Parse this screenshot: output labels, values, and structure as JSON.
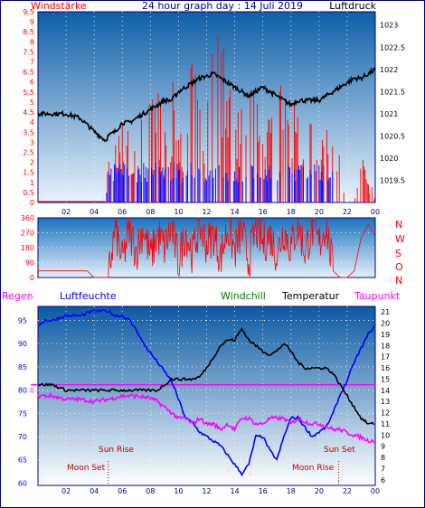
{
  "header": {
    "left_label": "Windstärke",
    "title": "24 hour graph day : 14 Juli 2019",
    "right_label": "Luftdruck"
  },
  "colors": {
    "wind": "#ff0000",
    "gust": "#0000ff",
    "pressure": "#000000",
    "direction": "#ff0000",
    "humidity": "#0000ff",
    "temperature": "#000000",
    "dewpoint": "#ff00ff",
    "windchill": "#008000",
    "regen": "#ff00ff",
    "plot_top": "#1a6fb3",
    "plot_bottom": "#ffffff",
    "markers": "#c00000"
  },
  "chart_data": [
    {
      "type": "line",
      "title": "24 hour graph day : 14 Juli 2019",
      "x_ticks": [
        "02",
        "04",
        "06",
        "08",
        "10",
        "12",
        "14",
        "16",
        "18",
        "20",
        "22",
        "00"
      ],
      "left_axis": {
        "label": "Windstärke",
        "ticks": [
          "0",
          "0.5",
          "1",
          "1.5",
          "2",
          "2.5",
          "3",
          "3.5",
          "4",
          "4.5",
          "5",
          "5.5",
          "6",
          "6.5",
          "7",
          "7.5",
          "8",
          "8.5",
          "9",
          "9.5"
        ],
        "ylim": [
          0,
          9.5
        ]
      },
      "right_axis": {
        "label": "Luftdruck",
        "ticks": [
          "1019.5",
          "1020",
          "1020.5",
          "1021",
          "1021.5",
          "1022",
          "1022.5",
          "1023"
        ],
        "ylim": [
          1019.0,
          1023.3
        ]
      },
      "series": [
        {
          "name": "Windstärke",
          "axis": "left",
          "x": [
            0,
            1,
            2,
            3,
            4,
            4.8,
            5,
            5.5,
            6,
            6.5,
            7,
            7.5,
            8,
            8.5,
            9,
            9.5,
            10,
            10.5,
            11,
            11.5,
            12,
            12.5,
            13,
            13.5,
            14,
            14.5,
            15,
            15.5,
            16,
            16.5,
            17,
            17.5,
            18,
            18.5,
            19,
            19.5,
            20,
            20.5,
            21,
            21.5,
            22,
            22.5,
            23,
            23.5,
            24
          ],
          "values": [
            0,
            0,
            0,
            0,
            0,
            0,
            2,
            2.5,
            3.5,
            3,
            3,
            4,
            4.5,
            5,
            3.5,
            5.5,
            4,
            4.5,
            6,
            6.5,
            5,
            9.5,
            7,
            6,
            5.5,
            4.5,
            6,
            5,
            3.5,
            6,
            5.5,
            6,
            4,
            5.5,
            3.5,
            4,
            2.5,
            3.5,
            2.5,
            2,
            0,
            0,
            2,
            1.5,
            0
          ]
        },
        {
          "name": "Luftdruck",
          "axis": "right",
          "x": [
            0,
            1,
            2,
            3,
            4,
            4.8,
            5,
            5.5,
            6,
            6.5,
            7,
            7.5,
            8,
            8.5,
            9,
            9.5,
            10,
            10.5,
            11,
            11.5,
            12,
            12.5,
            13,
            13.5,
            14,
            14.5,
            15,
            15.5,
            16,
            16.5,
            17,
            17.5,
            18,
            18.5,
            19,
            19.5,
            20,
            20.5,
            21,
            21.5,
            22,
            22.5,
            23,
            23.5,
            24
          ],
          "values": [
            1021.0,
            1021.0,
            1021.0,
            1020.9,
            1020.6,
            1020.4,
            1020.5,
            1020.6,
            1020.8,
            1020.8,
            1020.9,
            1021.0,
            1021.1,
            1021.2,
            1021.3,
            1021.3,
            1021.5,
            1021.6,
            1021.7,
            1021.8,
            1021.85,
            1021.9,
            1021.8,
            1021.7,
            1021.6,
            1021.5,
            1021.4,
            1021.5,
            1021.6,
            1021.5,
            1021.4,
            1021.3,
            1021.2,
            1021.3,
            1021.3,
            1021.3,
            1021.3,
            1021.4,
            1021.5,
            1021.6,
            1021.7,
            1021.8,
            1021.8,
            1021.9,
            1022.0
          ]
        }
      ]
    },
    {
      "type": "line",
      "left_axis": {
        "ticks": [
          "0",
          "90",
          "180",
          "270",
          "360"
        ],
        "ylim": [
          0,
          360
        ]
      },
      "right_labels": [
        "N",
        "W",
        "S",
        "O",
        "N"
      ],
      "series": [
        {
          "name": "Wind direction",
          "x": [
            0,
            1,
            2,
            3,
            3.5,
            4,
            4.5,
            5,
            5.5,
            6,
            6.5,
            7,
            7.5,
            8,
            8.5,
            9,
            9.5,
            10,
            10.5,
            11,
            11.5,
            12,
            12.5,
            13,
            13.5,
            14,
            14.5,
            15,
            15.5,
            16,
            16.5,
            17,
            17.5,
            18,
            18.5,
            19,
            19.5,
            20,
            20.5,
            21,
            21.5,
            22,
            22.5,
            23,
            23.5,
            24
          ],
          "values": [
            40,
            40,
            40,
            40,
            40,
            0,
            0,
            0,
            300,
            100,
            280,
            160,
            300,
            120,
            260,
            180,
            300,
            90,
            280,
            140,
            320,
            200,
            260,
            120,
            300,
            160,
            280,
            100,
            300,
            200,
            260,
            140,
            290,
            180,
            320,
            160,
            300,
            200,
            320,
            40,
            0,
            0,
            40,
            240,
            320,
            250
          ]
        }
      ]
    },
    {
      "type": "line",
      "labels": [
        "Regen",
        "Luftfeuchte",
        "Windchill",
        "Temperatur",
        "Taupunkt"
      ],
      "left_axis": {
        "label": "Luftfeuchte",
        "ticks": [
          "60",
          "65",
          "70",
          "75",
          "80",
          "85",
          "90",
          "95"
        ],
        "ylim": [
          59.5,
          98
        ]
      },
      "right_axis": {
        "ticks": [
          "6",
          "7",
          "8",
          "9",
          "10",
          "11",
          "12",
          "13",
          "14",
          "15",
          "16",
          "17",
          "18",
          "19",
          "20",
          "21"
        ],
        "ylim": [
          5.5,
          21.5
        ]
      },
      "x_ticks": [
        "02",
        "04",
        "06",
        "08",
        "10",
        "12",
        "14",
        "16",
        "18",
        "20",
        "22",
        "00"
      ],
      "annotations": {
        "sun_rise": "Sun Rise",
        "sun_set": "Sun Set",
        "moon_set": "Moon Set",
        "moon_rise": "Moon Rise"
      },
      "series": [
        {
          "name": "Luftfeuchte",
          "axis": "left",
          "x": [
            0,
            0.5,
            1,
            2,
            3,
            4,
            5,
            5.5,
            6,
            6.5,
            7,
            7.5,
            8,
            8.5,
            9,
            9.5,
            10,
            10.5,
            11,
            11.5,
            12,
            12.5,
            13,
            13.5,
            14,
            14.5,
            15,
            15.5,
            16,
            16.5,
            17,
            17.5,
            18,
            18.5,
            19,
            19.5,
            20,
            20.5,
            21,
            21.5,
            22,
            22.5,
            23,
            23.5,
            24
          ],
          "values": [
            94,
            95,
            95,
            96,
            96,
            97,
            97,
            96,
            96,
            95,
            93,
            90,
            88,
            86,
            84,
            82,
            78,
            74,
            73,
            71,
            70,
            69,
            68,
            66,
            64,
            62,
            64,
            70,
            70,
            67,
            65,
            70,
            74,
            74,
            72,
            70,
            71,
            72,
            75,
            79,
            82,
            86,
            89,
            92,
            94
          ]
        },
        {
          "name": "Temperatur",
          "axis": "right",
          "x": [
            0,
            1,
            2,
            3,
            4,
            5,
            6,
            7,
            8,
            8.5,
            9,
            9.5,
            10,
            10.5,
            11,
            11.5,
            12,
            12.5,
            13,
            13.5,
            14,
            14.5,
            15,
            15.5,
            16,
            16.5,
            17,
            17.5,
            18,
            18.5,
            19,
            19.5,
            20,
            20.5,
            21,
            21.5,
            22,
            22.5,
            23,
            23.5,
            24
          ],
          "values": [
            14.5,
            14.5,
            14,
            14,
            14,
            14,
            14,
            14,
            14,
            14,
            14.5,
            15,
            15,
            15,
            15,
            15.2,
            16,
            17,
            18,
            18.5,
            18.5,
            19.5,
            18.5,
            18,
            17.5,
            17.2,
            17.5,
            18.2,
            17.5,
            16.5,
            16,
            16,
            16,
            16,
            15.5,
            14.5,
            13.5,
            12.5,
            11.5,
            11,
            11
          ]
        },
        {
          "name": "Taupunkt",
          "axis": "right",
          "x": [
            0,
            1,
            2,
            3,
            4,
            5,
            6,
            7,
            8,
            8.5,
            9,
            9.5,
            10,
            10.5,
            11,
            11.5,
            12,
            12.5,
            13,
            13.5,
            14,
            14.5,
            15,
            15.5,
            16,
            16.5,
            17,
            17.5,
            18,
            18.5,
            19,
            19.5,
            20,
            20.5,
            21,
            21.5,
            22,
            22.5,
            23,
            23.5,
            24
          ],
          "values": [
            13.5,
            13.5,
            13.2,
            13.2,
            13,
            13.2,
            13.5,
            13.5,
            13.3,
            13,
            12.5,
            12,
            11.5,
            11.5,
            11,
            11.5,
            11,
            11,
            10.5,
            11,
            10.5,
            11.5,
            11.5,
            11,
            11,
            11.5,
            11.5,
            11.5,
            11,
            11.5,
            11.2,
            11,
            11,
            10.8,
            10.5,
            10.5,
            10.2,
            10,
            9.8,
            9.5,
            9.5
          ]
        },
        {
          "name": "Windchill",
          "axis": "right",
          "x": [
            0,
            24
          ],
          "values": [
            14.5,
            14.5
          ]
        }
      ]
    }
  ]
}
